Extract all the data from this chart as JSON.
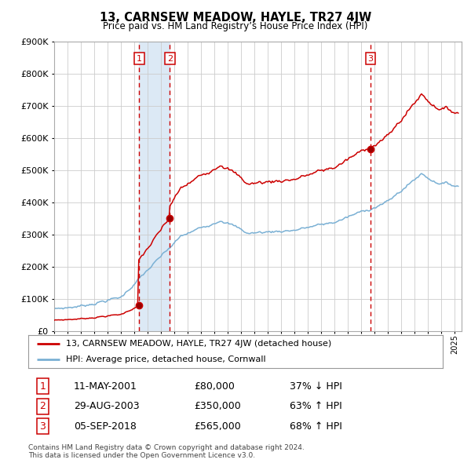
{
  "title": "13, CARNSEW MEADOW, HAYLE, TR27 4JW",
  "subtitle": "Price paid vs. HM Land Registry’s House Price Index (HPI)",
  "legend_line1": "13, CARNSEW MEADOW, HAYLE, TR27 4JW (detached house)",
  "legend_line2": "HPI: Average price, detached house, Cornwall",
  "transaction1": {
    "label": "1",
    "date": "11-MAY-2001",
    "price": 80000,
    "hpi_rel": "37% ↓ HPI",
    "x_year": 2001.36
  },
  "transaction2": {
    "label": "2",
    "date": "29-AUG-2003",
    "price": 350000,
    "hpi_rel": "63% ↑ HPI",
    "x_year": 2003.66
  },
  "transaction3": {
    "label": "3",
    "date": "05-SEP-2018",
    "price": 565000,
    "hpi_rel": "68% ↑ HPI",
    "x_year": 2018.68
  },
  "ylim": [
    0,
    900000
  ],
  "xlim_start": 1995.0,
  "xlim_end": 2025.5,
  "red_line_color": "#cc0000",
  "blue_line_color": "#7ab0d4",
  "background_color": "#ffffff",
  "grid_color": "#cccccc",
  "shade_color": "#dce9f5",
  "dashed_line_color": "#cc0000",
  "footnote1": "Contains HM Land Registry data © Crown copyright and database right 2024.",
  "footnote2": "This data is licensed under the Open Government Licence v3.0."
}
